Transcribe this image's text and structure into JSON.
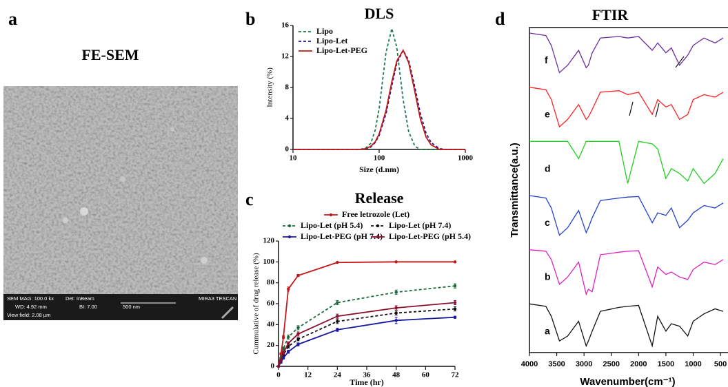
{
  "panel_labels": [
    "a",
    "b",
    "c",
    "d"
  ],
  "sem": {
    "title": "FE-SEM",
    "info": [
      "SEM MAG: 100.0 kx",
      "Det: InBeam",
      "MIRA3 TESCAN",
      "WD: 4.92 mm",
      "BI: 7.00",
      "500 nm",
      "View field: 2.08 µm"
    ]
  },
  "chart_data": [
    {
      "type": "line",
      "title": "DLS",
      "xlabel": "Size (d.nm)",
      "ylabel": "Intensity (%)",
      "xscale": "log",
      "xlim": [
        10,
        1000
      ],
      "xticks": [
        10,
        100,
        1000
      ],
      "ylim": [
        0,
        16
      ],
      "yticks": [
        0,
        4,
        8,
        12,
        16
      ],
      "legend": "upper left",
      "x": [
        10,
        50,
        60,
        70,
        80,
        90,
        100,
        120,
        140,
        160,
        190,
        220,
        260,
        300,
        350,
        400,
        500,
        600,
        700,
        1000
      ],
      "series": [
        {
          "name": "Lipo",
          "color": "#1a7a4a",
          "dash": true,
          "values": [
            0,
            0,
            0,
            0.2,
            0.8,
            2.5,
            5.3,
            12.5,
            15.6,
            13.2,
            6.4,
            2.3,
            0.4,
            0,
            0,
            0,
            0,
            0,
            0,
            0
          ]
        },
        {
          "name": "Lipo-Let",
          "color": "#1a1aa0",
          "dash": true,
          "values": [
            0,
            0,
            0,
            0.1,
            0.3,
            0.9,
            1.8,
            4.6,
            8.2,
            11.1,
            12.8,
            11.5,
            8.0,
            4.7,
            2.1,
            0.9,
            0.1,
            0,
            0,
            0
          ]
        },
        {
          "name": "Lipo-Let-PEG",
          "color": "#c01818",
          "dash": false,
          "values": [
            0,
            0,
            0,
            0.1,
            0.4,
            1.0,
            2.0,
            5.0,
            8.7,
            11.4,
            12.8,
            11.2,
            7.4,
            4.0,
            1.6,
            0.6,
            0,
            0,
            0,
            0
          ]
        }
      ]
    },
    {
      "type": "line",
      "title": "Release",
      "xlabel": "Time (hr)",
      "ylabel": "Cummulative of drug release (%)",
      "xlim": [
        0,
        72
      ],
      "xticks": [
        0,
        12,
        24,
        36,
        48,
        60,
        72
      ],
      "ylim": [
        0,
        120
      ],
      "yticks": [
        0,
        20,
        40,
        60,
        80,
        100,
        120
      ],
      "legend": "top",
      "x": [
        0,
        1,
        2,
        4,
        8,
        24,
        48,
        72
      ],
      "series": [
        {
          "name": "Free letrozole (Let)",
          "color": "#c01818",
          "dash": false,
          "values": [
            0,
            12,
            28,
            74,
            87,
            99.5,
            100,
            100
          ],
          "errors": [
            0,
            1,
            1.5,
            2,
            1,
            0.5,
            0.5,
            0.5
          ]
        },
        {
          "name": "Lipo-Let (pH 5.4)",
          "color": "#1a6a3a",
          "dash": true,
          "values": [
            0,
            8,
            17,
            28,
            37,
            61,
            71,
            77
          ],
          "errors": [
            0,
            1,
            1.5,
            2,
            2,
            2,
            2,
            2
          ]
        },
        {
          "name": "Lipo-Let  (pH 7.4)",
          "color": "#111111",
          "dash": true,
          "values": [
            0,
            5,
            11,
            19,
            26,
            43,
            51,
            55
          ],
          "errors": [
            0,
            1,
            1,
            1.5,
            1.5,
            2,
            2,
            2
          ]
        },
        {
          "name": "Lipo-Let-PEG  (pH 7.4)",
          "color": "#1a1aa0",
          "dash": false,
          "values": [
            0,
            4,
            8,
            14,
            21,
            35,
            44,
            47
          ],
          "errors": [
            0,
            1,
            1,
            1.5,
            1.5,
            1.5,
            3,
            1
          ]
        },
        {
          "name": "Lipo-Let-PEG  (pH 5.4)",
          "color": "#8a1030",
          "dash": false,
          "values": [
            0,
            6,
            13,
            22,
            31,
            48,
            56,
            61
          ],
          "errors": [
            0,
            1,
            1.5,
            1.5,
            2,
            2,
            2,
            2
          ]
        }
      ]
    },
    {
      "type": "spectrum",
      "title": "FTIR",
      "xlabel": "Wavenumber(cm⁻¹)",
      "ylabel": "Transmittance(a.u.)",
      "xlim": [
        4000,
        400
      ],
      "xticks": [
        4000,
        3500,
        3000,
        2500,
        2000,
        1500,
        1000,
        500
      ],
      "x": [
        4000,
        3700,
        3600,
        3450,
        3300,
        3100,
        2960,
        2920,
        2850,
        2700,
        2360,
        2200,
        2000,
        1750,
        1650,
        1500,
        1400,
        1250,
        1100,
        1000,
        800,
        600,
        450
      ],
      "series": [
        {
          "name": "a",
          "color": "#111111",
          "values": [
            95,
            90,
            70,
            20,
            30,
            60,
            10,
            20,
            40,
            80,
            88,
            90,
            92,
            10,
            70,
            40,
            55,
            50,
            30,
            60,
            75,
            85,
            80
          ]
        },
        {
          "name": "b",
          "color": "#e020c0",
          "values": [
            95,
            92,
            75,
            25,
            40,
            70,
            5,
            15,
            10,
            85,
            90,
            92,
            93,
            20,
            60,
            45,
            50,
            40,
            35,
            55,
            70,
            65,
            75
          ]
        },
        {
          "name": "c",
          "color": "#1f3fd0",
          "values": [
            95,
            90,
            70,
            15,
            30,
            65,
            20,
            30,
            50,
            85,
            90,
            92,
            93,
            40,
            60,
            55,
            70,
            30,
            45,
            60,
            75,
            70,
            80
          ]
        },
        {
          "name": "d",
          "color": "#1fd01f",
          "values": [
            95,
            95,
            95,
            95,
            95,
            60,
            95,
            95,
            95,
            95,
            95,
            10,
            95,
            90,
            80,
            20,
            40,
            30,
            15,
            40,
            10,
            30,
            60
          ]
        },
        {
          "name": "e",
          "color": "#ff2020",
          "values": [
            95,
            90,
            70,
            15,
            30,
            60,
            30,
            35,
            50,
            85,
            88,
            80,
            85,
            40,
            70,
            55,
            60,
            30,
            40,
            70,
            80,
            75,
            85
          ]
        },
        {
          "name": "f",
          "color": "#6a2c9e",
          "values": [
            95,
            90,
            70,
            15,
            30,
            60,
            25,
            30,
            55,
            85,
            88,
            85,
            88,
            60,
            75,
            55,
            65,
            30,
            50,
            70,
            85,
            75,
            85
          ]
        }
      ]
    }
  ]
}
